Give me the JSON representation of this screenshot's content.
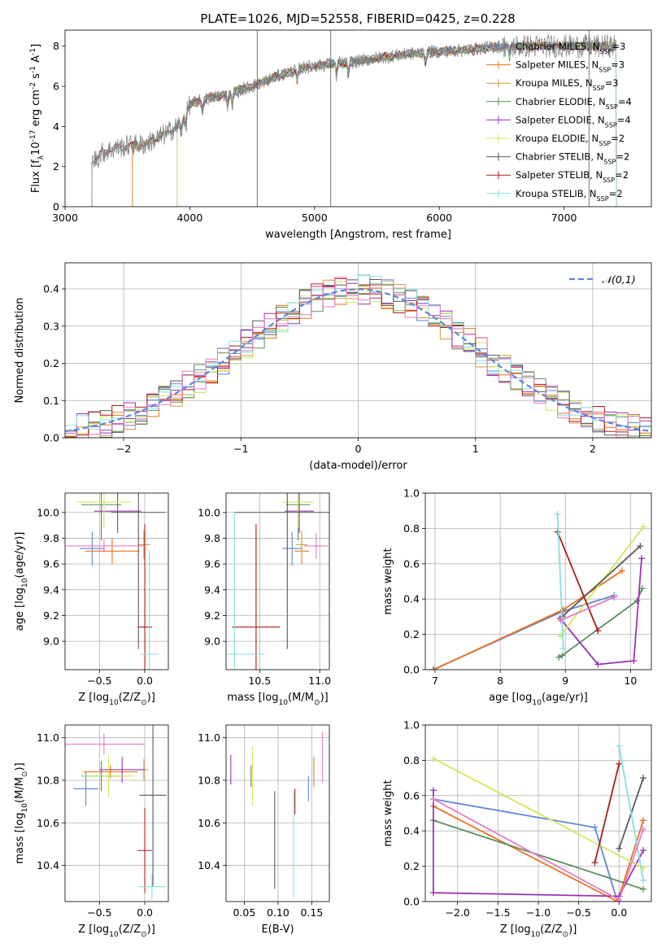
{
  "figure": {
    "title": "PLATE=1026, MJD=52558, FIBERID=0425, z=0.228"
  },
  "colors": {
    "chabrier_miles": "#5f86d8",
    "salpeter_miles": "#e8731c",
    "kroupa_miles": "#d49a3c",
    "chabrier_elodie": "#5c8c5c",
    "salpeter_elodie": "#9a32b4",
    "kroupa_elodie": "#cfe85c",
    "chabrier_stelib": "#5a5a5a",
    "salpeter_stelib": "#b01a1a",
    "kroupa_stelib": "#86dede",
    "pink": "#e87bc4",
    "grid": "#b0b0b0",
    "data": "#7f7f7f",
    "normal": "#5f86d8"
  },
  "chart_data": [
    {
      "id": "spectrum",
      "type": "line",
      "xlabel": "wavelength [Angstrom, rest frame]",
      "ylabel": "Flux [f$_\\lambda$10$^{-17}$ erg cm$^{-2}$ s$^{-1}$ A$^{-1}$]",
      "xlim": [
        3000,
        7700
      ],
      "ylim": [
        0,
        8.8
      ],
      "xticks": [
        3000,
        4000,
        5000,
        6000,
        7000
      ],
      "yticks": [
        0,
        2,
        4,
        6,
        8
      ],
      "grid": false,
      "legend_position": "right",
      "legend": [
        {
          "label": "Chabrier MILES, N$_{SSP}$=3",
          "color_key": "chabrier_miles"
        },
        {
          "label": "Salpeter MILES, N$_{SSP}$=3",
          "color_key": "salpeter_miles"
        },
        {
          "label": "Kroupa MILES, N$_{SSP}$=3",
          "color_key": "kroupa_miles"
        },
        {
          "label": "Chabrier ELODIE, N$_{SSP}$=4",
          "color_key": "chabrier_elodie"
        },
        {
          "label": "Salpeter ELODIE, N$_{SSP}$=4",
          "color_key": "salpeter_elodie"
        },
        {
          "label": "Kroupa ELODIE, N$_{SSP}$=2",
          "color_key": "kroupa_elodie"
        },
        {
          "label": "Chabrier STELIB, N$_{SSP}$=2",
          "color_key": "chabrier_stelib"
        },
        {
          "label": "Salpeter STELIB, N$_{SSP}$=2",
          "color_key": "salpeter_stelib"
        },
        {
          "label": "Kroupa STELIB, N$_{SSP}$=2",
          "color_key": "kroupa_stelib"
        }
      ],
      "continuum": [
        [
          3215,
          2.2
        ],
        [
          3300,
          2.7
        ],
        [
          3400,
          2.9
        ],
        [
          3550,
          3.1
        ],
        [
          3650,
          3.1
        ],
        [
          3700,
          3.3
        ],
        [
          3800,
          3.6
        ],
        [
          3900,
          4.0
        ],
        [
          3950,
          4.4
        ],
        [
          4000,
          5.1
        ],
        [
          4150,
          5.4
        ],
        [
          4300,
          5.6
        ],
        [
          4500,
          6.0
        ],
        [
          4700,
          6.5
        ],
        [
          4900,
          6.9
        ],
        [
          5100,
          7.1
        ],
        [
          5300,
          7.2
        ],
        [
          5600,
          7.5
        ],
        [
          5900,
          7.7
        ],
        [
          6200,
          7.8
        ],
        [
          6500,
          8.0
        ],
        [
          6800,
          8.0
        ],
        [
          7000,
          8.0
        ],
        [
          7200,
          8.0
        ],
        [
          7420,
          8.0
        ]
      ],
      "model_start": {
        "miles": 3540,
        "elodie": 3900,
        "stelib": 3215
      },
      "flux_drops": {
        "miles": [
          3540,
          3575
        ],
        "elodie": [
          3900,
          3930
        ],
        "stelib": [
          7390,
          7420
        ]
      },
      "spikes": [
        4540,
        5130,
        7200
      ]
    },
    {
      "id": "residuals",
      "type": "histogram",
      "xlabel": "(data-model)/error",
      "ylabel": "Normed distribution",
      "xlim": [
        -2.5,
        2.5
      ],
      "ylim": [
        0,
        0.47
      ],
      "xticks": [
        -2,
        -1,
        0,
        1,
        2
      ],
      "yticks": [
        0.0,
        0.1,
        0.2,
        0.3,
        0.4
      ],
      "grid": true,
      "legend_position": "upper right",
      "normal_label": "$\\mathcal{N}(0,1)$",
      "bin_width": 0.1
    },
    {
      "id": "age_vs_Z",
      "type": "errorbar",
      "xlabel": "Z [log$_{10}$(Z/Z$_\\odot$)]",
      "ylabel": "age  [log$_{10}$(age/yr)]",
      "xlim": [
        -0.88,
        0.26
      ],
      "ylim": [
        8.78,
        10.15
      ],
      "xticks": [
        -0.5,
        0.0
      ],
      "yticks": [
        9.0,
        9.2,
        9.4,
        9.6,
        9.8,
        10.0
      ],
      "grid": true,
      "points": [
        {
          "color_key": "chabrier_miles",
          "x": -0.58,
          "xerr": 0.14,
          "y": 9.72,
          "yerr": 0.13
        },
        {
          "color_key": "salpeter_miles",
          "x": -0.36,
          "xerr": 0.3,
          "y": 9.7,
          "yerr": 0.1
        },
        {
          "color_key": "kroupa_miles",
          "x": -0.01,
          "xerr": 0.07,
          "y": 9.75,
          "yerr": 0.11
        },
        {
          "color_key": "chabrier_elodie",
          "x": -0.48,
          "xerr": 0.22,
          "y": 10.06,
          "yerr": 0.28
        },
        {
          "color_key": "salpeter_elodie",
          "x": -0.3,
          "xerr": 0.26,
          "y": 10.01,
          "yerr": 0.17
        },
        {
          "color_key": "kroupa_elodie",
          "x": -0.45,
          "xerr": 0.3,
          "y": 10.08,
          "yerr": 0.2
        },
        {
          "color_key": "chabrier_stelib",
          "x": -0.07,
          "xerr": 0.3,
          "y": 10.0,
          "yerr": 1.06
        },
        {
          "color_key": "salpeter_stelib",
          "x": 0.0,
          "xerr": 0.08,
          "y": 9.11,
          "yerr": 0.8
        },
        {
          "color_key": "kroupa_stelib",
          "x": 0.05,
          "xerr": 0.1,
          "y": 8.9,
          "yerr": 0.8
        },
        {
          "color_key": "pink",
          "x": -0.45,
          "xerr": 0.45,
          "y": 9.74,
          "yerr": 0.05
        }
      ]
    },
    {
      "id": "age_vs_mass",
      "type": "errorbar",
      "xlabel": "mass [log$_{10}$(M/M$_\\odot$)]",
      "ylabel": "",
      "xlim": [
        10.22,
        11.08
      ],
      "ylim": [
        8.78,
        10.15
      ],
      "xticks": [
        10.5,
        11.0
      ],
      "yticks": [
        9.0,
        9.2,
        9.4,
        9.6,
        9.8,
        10.0
      ],
      "grid": true,
      "points": [
        {
          "color_key": "chabrier_miles",
          "x": 10.77,
          "xerr": 0.08,
          "y": 9.72,
          "yerr": 0.13
        },
        {
          "color_key": "salpeter_miles",
          "x": 10.85,
          "xerr": 0.06,
          "y": 9.7,
          "yerr": 0.1
        },
        {
          "color_key": "kroupa_miles",
          "x": 10.85,
          "xerr": 0.05,
          "y": 9.75,
          "yerr": 0.11
        },
        {
          "color_key": "chabrier_elodie",
          "x": 10.82,
          "xerr": 0.1,
          "y": 10.06,
          "yerr": 0.28
        },
        {
          "color_key": "salpeter_elodie",
          "x": 10.83,
          "xerr": 0.12,
          "y": 10.01,
          "yerr": 0.17
        },
        {
          "color_key": "kroupa_elodie",
          "x": 10.82,
          "xerr": 0.13,
          "y": 10.08,
          "yerr": 0.2
        },
        {
          "color_key": "chabrier_stelib",
          "x": 10.73,
          "xerr": 0.44,
          "y": 10.0,
          "yerr": 1.06
        },
        {
          "color_key": "salpeter_stelib",
          "x": 10.47,
          "xerr": 0.2,
          "y": 9.11,
          "yerr": 0.8
        },
        {
          "color_key": "kroupa_stelib",
          "x": 10.29,
          "xerr": 0.25,
          "y": 8.9,
          "yerr": 1.1
        },
        {
          "color_key": "pink",
          "x": 10.97,
          "xerr": 0.1,
          "y": 9.74,
          "yerr": 0.1
        }
      ]
    },
    {
      "id": "weight_vs_age",
      "type": "line",
      "xlabel": "age  [log$_{10}$(age/yr)]",
      "ylabel": "mass weight",
      "xlim": [
        6.85,
        10.32
      ],
      "ylim": [
        0,
        1.0
      ],
      "xticks": [
        7,
        8,
        9,
        10
      ],
      "yticks": [
        0.0,
        0.2,
        0.4,
        0.6,
        0.8,
        1.0
      ],
      "grid": true,
      "series": [
        {
          "color_key": "chabrier_miles",
          "x": [
            6.97,
            8.96,
            9.75
          ],
          "y": [
            0.0,
            0.33,
            0.42
          ]
        },
        {
          "color_key": "salpeter_miles",
          "x": [
            6.98,
            8.97,
            9.87
          ],
          "y": [
            0.0,
            0.34,
            0.56
          ]
        },
        {
          "color_key": "chabrier_elodie",
          "x": [
            8.9,
            8.95,
            10.1,
            10.18
          ],
          "y": [
            0.07,
            0.08,
            0.39,
            0.46
          ]
        },
        {
          "color_key": "salpeter_elodie",
          "x": [
            8.92,
            9.5,
            10.05,
            10.17
          ],
          "y": [
            0.29,
            0.03,
            0.05,
            0.63
          ]
        },
        {
          "color_key": "kroupa_elodie",
          "x": [
            8.92,
            10.2
          ],
          "y": [
            0.19,
            0.81
          ]
        },
        {
          "color_key": "chabrier_stelib",
          "x": [
            8.95,
            10.15
          ],
          "y": [
            0.3,
            0.7
          ]
        },
        {
          "color_key": "salpeter_stelib",
          "x": [
            8.88,
            9.5
          ],
          "y": [
            0.78,
            0.22
          ]
        },
        {
          "color_key": "kroupa_stelib",
          "x": [
            8.88,
            8.97
          ],
          "y": [
            0.88,
            0.12
          ]
        },
        {
          "color_key": "pink",
          "x": [
            8.93,
            9.75
          ],
          "y": [
            0.28,
            0.41
          ]
        }
      ]
    },
    {
      "id": "mass_vs_Z",
      "type": "errorbar",
      "xlabel": "Z [log$_{10}$(Z/Z$_\\odot$)]",
      "ylabel": "mass [log$_{10}$(M/M$_\\odot$)]",
      "xlim": [
        -0.88,
        0.26
      ],
      "ylim": [
        10.23,
        11.06
      ],
      "xticks": [
        -0.5,
        0.0
      ],
      "yticks": [
        10.4,
        10.6,
        10.8,
        11.0
      ],
      "grid": true,
      "points": [
        {
          "color_key": "chabrier_miles",
          "x": -0.65,
          "xerr": 0.14,
          "y": 10.76,
          "yerr": 0.08
        },
        {
          "color_key": "salpeter_miles",
          "x": -0.38,
          "xerr": 0.3,
          "y": 10.84,
          "yerr": 0.03
        },
        {
          "color_key": "kroupa_miles",
          "x": -0.01,
          "xerr": 0.05,
          "y": 10.85,
          "yerr": 0.05
        },
        {
          "color_key": "chabrier_elodie",
          "x": -0.48,
          "xerr": 0.22,
          "y": 10.82,
          "yerr": 0.07
        },
        {
          "color_key": "salpeter_elodie",
          "x": -0.25,
          "xerr": 0.25,
          "y": 10.85,
          "yerr": 0.06
        },
        {
          "color_key": "kroupa_elodie",
          "x": -0.4,
          "xerr": 0.28,
          "y": 10.82,
          "yerr": 0.1
        },
        {
          "color_key": "chabrier_stelib",
          "x": 0.09,
          "xerr": 0.15,
          "y": 10.73,
          "yerr": 0.43
        },
        {
          "color_key": "salpeter_stelib",
          "x": 0.0,
          "xerr": 0.08,
          "y": 10.47,
          "yerr": 0.2
        },
        {
          "color_key": "kroupa_stelib",
          "x": 0.08,
          "xerr": 0.15,
          "y": 10.3,
          "yerr": 0.06
        },
        {
          "color_key": "pink",
          "x": -0.45,
          "xerr": 0.45,
          "y": 10.97,
          "yerr": 0.05
        }
      ]
    },
    {
      "id": "mass_vs_ebv",
      "type": "errorbar",
      "xlabel": "E(B-V)",
      "ylabel": "",
      "xlim": [
        0.023,
        0.176
      ],
      "ylim": [
        10.23,
        11.06
      ],
      "xticks": [
        0.05,
        0.1,
        0.15
      ],
      "yticks": [
        10.4,
        10.6,
        10.8,
        11.0
      ],
      "grid": true,
      "points": [
        {
          "color_key": "chabrier_miles",
          "x": 0.145,
          "xerr": 0,
          "y": 10.76,
          "yerr": 0.06
        },
        {
          "color_key": "salpeter_miles",
          "x": 0.153,
          "xerr": 0,
          "y": 10.84,
          "yerr": 0.07
        },
        {
          "color_key": "kroupa_miles",
          "x": 0.153,
          "xerr": 0,
          "y": 10.85,
          "yerr": 0.05
        },
        {
          "color_key": "chabrier_elodie",
          "x": 0.06,
          "xerr": 0,
          "y": 10.82,
          "yerr": 0.05
        },
        {
          "color_key": "salpeter_elodie",
          "x": 0.03,
          "xerr": 0,
          "y": 10.85,
          "yerr": 0.07
        },
        {
          "color_key": "kroupa_elodie",
          "x": 0.062,
          "xerr": 0,
          "y": 10.82,
          "yerr": 0.14
        },
        {
          "color_key": "chabrier_stelib",
          "x": 0.095,
          "xerr": 0,
          "y": 10.52,
          "yerr": 0.23
        },
        {
          "color_key": "salpeter_stelib",
          "x": 0.125,
          "xerr": 0,
          "y": 10.7,
          "yerr": 0.06
        },
        {
          "color_key": "kroupa_stelib",
          "x": 0.123,
          "xerr": 0,
          "y": 10.5,
          "yerr": 0.25
        },
        {
          "color_key": "pink",
          "x": 0.166,
          "xerr": 0,
          "y": 10.91,
          "yerr": 0.12
        }
      ]
    },
    {
      "id": "weight_vs_Z",
      "type": "line",
      "xlabel": "Z [log$_{10}$(Z/Z$_\\odot$)]",
      "ylabel": "mass weight",
      "xlim": [
        -2.4,
        0.4
      ],
      "ylim": [
        0,
        1.0
      ],
      "xticks": [
        -2.0,
        -1.5,
        -1.0,
        -0.5,
        0.0
      ],
      "yticks": [
        0.0,
        0.2,
        0.4,
        0.6,
        0.8,
        1.0
      ],
      "grid": true,
      "series": [
        {
          "color_key": "chabrier_miles",
          "x": [
            -2.3,
            -0.3,
            -0.02
          ],
          "y": [
            0.58,
            0.42,
            0.0
          ]
        },
        {
          "color_key": "salpeter_miles",
          "x": [
            -2.3,
            -0.02,
            0.3
          ],
          "y": [
            0.54,
            0.0,
            0.46
          ]
        },
        {
          "color_key": "chabrier_elodie",
          "x": [
            -2.3,
            0.3
          ],
          "y": [
            0.46,
            0.07
          ]
        },
        {
          "color_key": "salpeter_elodie",
          "x": [
            -2.3,
            -2.3,
            0.0,
            0.3
          ],
          "y": [
            0.63,
            0.05,
            0.03,
            0.29
          ]
        },
        {
          "color_key": "kroupa_elodie",
          "x": [
            -2.3,
            0.3
          ],
          "y": [
            0.81,
            0.19
          ]
        },
        {
          "color_key": "chabrier_stelib",
          "x": [
            0.0,
            0.3
          ],
          "y": [
            0.3,
            0.7
          ]
        },
        {
          "color_key": "salpeter_stelib",
          "x": [
            -0.3,
            0.0
          ],
          "y": [
            0.22,
            0.78
          ]
        },
        {
          "color_key": "kroupa_stelib",
          "x": [
            0.0,
            0.3
          ],
          "y": [
            0.88,
            0.12
          ]
        },
        {
          "color_key": "pink",
          "x": [
            -2.3,
            0.0,
            0.3
          ],
          "y": [
            0.58,
            0.01,
            0.41
          ]
        }
      ]
    }
  ]
}
